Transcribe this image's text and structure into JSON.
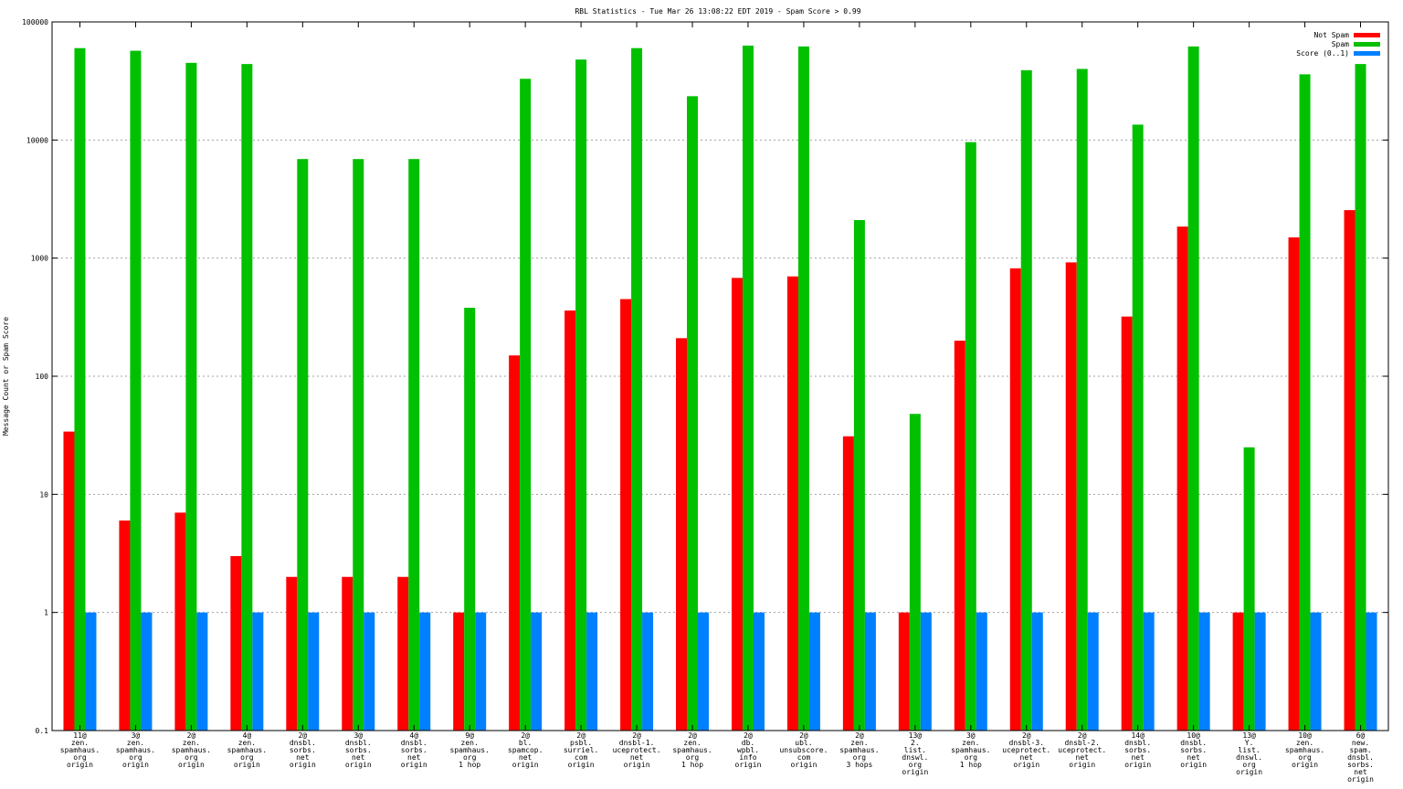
{
  "chart_data": {
    "type": "bar",
    "title": "RBL Statistics - Tue Mar 26 13:08:22 EDT 2019 - Spam Score > 0.99",
    "ylabel": "Message Count or Spam Score",
    "xlabel": "",
    "yscale": "log",
    "ylim": [
      0.1,
      100000
    ],
    "yticks": [
      "0.1",
      "1",
      "10",
      "100",
      "1000",
      "10000",
      "100000"
    ],
    "grid": true,
    "legend_position": "top-right",
    "categories": [
      [
        "11@",
        "zen.",
        "spamhaus.",
        "org",
        "origin"
      ],
      [
        "3@",
        "zen.",
        "spamhaus.",
        "org",
        "origin"
      ],
      [
        "2@",
        "zen.",
        "spamhaus.",
        "org",
        "origin"
      ],
      [
        "4@",
        "zen.",
        "spamhaus.",
        "org",
        "origin"
      ],
      [
        "2@",
        "dnsbl.",
        "sorbs.",
        "net",
        "origin"
      ],
      [
        "3@",
        "dnsbl.",
        "sorbs.",
        "net",
        "origin"
      ],
      [
        "4@",
        "dnsbl.",
        "sorbs.",
        "net",
        "origin"
      ],
      [
        "9@",
        "zen.",
        "spamhaus.",
        "org",
        "1 hop"
      ],
      [
        "2@",
        "bl.",
        "spamcop.",
        "net",
        "origin"
      ],
      [
        "2@",
        "psbl.",
        "surriel.",
        "com",
        "origin"
      ],
      [
        "2@",
        "dnsbl-1.",
        "uceprotect.",
        "net",
        "origin"
      ],
      [
        "2@",
        "zen.",
        "spamhaus.",
        "org",
        "1 hop"
      ],
      [
        "2@",
        "db.",
        "wpbl.",
        "info",
        "origin"
      ],
      [
        "2@",
        "ubl.",
        "unsubscore.",
        "com",
        "origin"
      ],
      [
        "2@",
        "zen.",
        "spamhaus.",
        "org",
        "3 hops"
      ],
      [
        "13@",
        "2.",
        "list.",
        "dnswl.",
        "org",
        "origin"
      ],
      [
        "3@",
        "zen.",
        "spamhaus.",
        "org",
        "1 hop"
      ],
      [
        "2@",
        "dnsbl-3.",
        "uceprotect.",
        "net",
        "origin"
      ],
      [
        "2@",
        "dnsbl-2.",
        "uceprotect.",
        "net",
        "origin"
      ],
      [
        "14@",
        "dnsbl.",
        "sorbs.",
        "net",
        "origin"
      ],
      [
        "10@",
        "dnsbl.",
        "sorbs.",
        "net",
        "origin"
      ],
      [
        "13@",
        "Y.",
        "list.",
        "dnswl.",
        "org",
        "origin"
      ],
      [
        "10@",
        "zen.",
        "spamhaus.",
        "org",
        "origin"
      ],
      [
        "6@",
        "new.",
        "spam.",
        "dnsbl.",
        "sorbs.",
        "net",
        "origin"
      ]
    ],
    "series": [
      {
        "name": "Not Spam",
        "color": "#ff0000",
        "values": [
          34,
          6,
          7,
          3,
          2,
          2,
          2,
          1,
          150,
          360,
          450,
          210,
          680,
          700,
          31,
          1,
          200,
          820,
          920,
          320,
          1850,
          1,
          1500,
          2550
        ]
      },
      {
        "name": "Spam",
        "color": "#00c000",
        "values": [
          60000,
          57000,
          45000,
          44000,
          6900,
          6900,
          6900,
          380,
          33000,
          48000,
          60000,
          23500,
          63000,
          62000,
          2100,
          48,
          9600,
          39000,
          40000,
          13500,
          62000,
          25,
          36000,
          44000
        ]
      },
      {
        "name": "Score (0..1)",
        "color": "#0080ff",
        "values": [
          1,
          1,
          1,
          1,
          1,
          1,
          1,
          1,
          1,
          1,
          1,
          1,
          1,
          1,
          1,
          1,
          1,
          1,
          1,
          1,
          1,
          1,
          1,
          1
        ]
      }
    ]
  }
}
